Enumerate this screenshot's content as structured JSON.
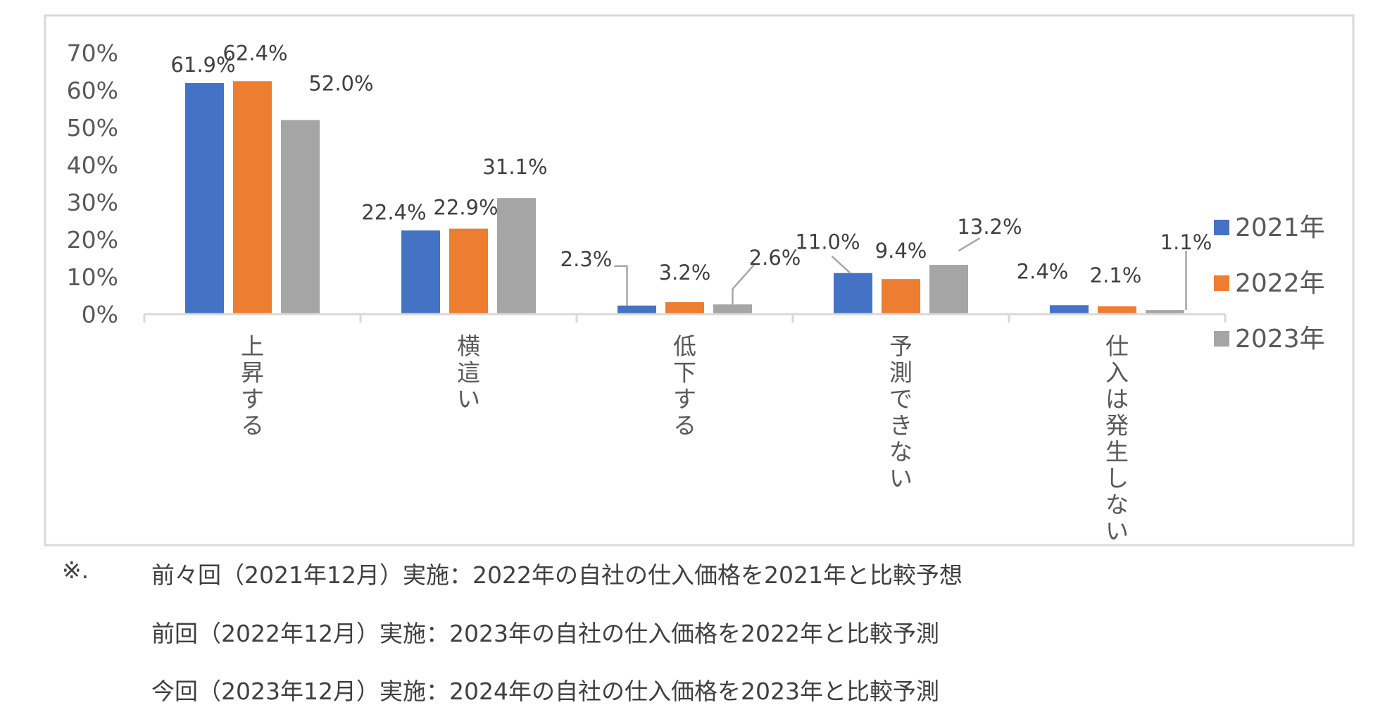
{
  "chart_data": {
    "type": "bar",
    "categories": [
      "上昇する",
      "横這い",
      "低下する",
      "予測できない",
      "仕入は発生しない"
    ],
    "series": [
      {
        "name": "2021年",
        "color": "#4472C4",
        "values": [
          61.9,
          22.4,
          2.3,
          11.0,
          2.4
        ],
        "labels": [
          "61.9%",
          "22.4%",
          "2.3%",
          "11.0%",
          "2.4%"
        ]
      },
      {
        "name": "2022年",
        "color": "#ED7D31",
        "values": [
          62.4,
          22.9,
          3.2,
          9.4,
          2.1
        ],
        "labels": [
          "62.4%",
          "22.9%",
          "3.2%",
          "9.4%",
          "2.1%"
        ]
      },
      {
        "name": "2023年",
        "color": "#A5A5A5",
        "values": [
          52.0,
          31.1,
          2.6,
          13.2,
          1.1
        ],
        "labels": [
          "52.0%",
          "31.1%",
          "2.6%",
          "13.2%",
          "1.1%"
        ]
      }
    ],
    "yticks": [
      "0%",
      "10%",
      "20%",
      "30%",
      "40%",
      "50%",
      "60%",
      "70%"
    ],
    "ylim": [
      0,
      70
    ],
    "legend_position": "right",
    "title": "",
    "xlabel": "",
    "ylabel": ""
  },
  "notes": {
    "mark": "※.",
    "lines": [
      "前々回（2021年12月）実施：2022年の自社の仕入価格を2021年と比較予想",
      "前回（2022年12月）実施：2023年の自社の仕入価格を2022年と比較予測",
      "今回（2023年12月）実施：2024年の自社の仕入価格を2023年と比較予測"
    ]
  }
}
